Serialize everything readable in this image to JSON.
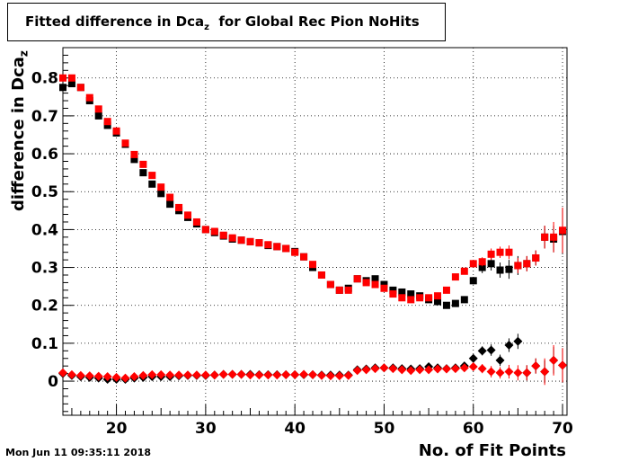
{
  "chart_data": {
    "type": "scatter",
    "title": "Fitted difference in Dca",
    "title_subscript": "z",
    "title_suffix": "for Global Rec Pion NoHits",
    "xlabel": "No. of Fit Points",
    "ylabel": "difference in Dca",
    "ylabel_subscript": "z",
    "xlim": [
      14,
      70.5
    ],
    "ylim": [
      -0.09,
      0.88
    ],
    "x_ticks": [
      20,
      30,
      40,
      50,
      60,
      70
    ],
    "y_ticks": [
      0,
      0.1,
      0.2,
      0.3,
      0.4,
      0.5,
      0.6,
      0.7,
      0.8
    ],
    "grid": true,
    "series": [
      {
        "color": "#000000",
        "marker": "square",
        "x": [
          14,
          15,
          16,
          17,
          18,
          19,
          20,
          21,
          22,
          23,
          24,
          25,
          26,
          27,
          28,
          29,
          30,
          31,
          32,
          33,
          34,
          35,
          36,
          37,
          38,
          39,
          40,
          41,
          42,
          43,
          44,
          45,
          46,
          47,
          48,
          49,
          50,
          51,
          52,
          53,
          54,
          55,
          56,
          57,
          58,
          59,
          60,
          61,
          62,
          63,
          64,
          65,
          66,
          67,
          68,
          69,
          70
        ],
        "y": [
          0.775,
          0.785,
          0.775,
          0.74,
          0.7,
          0.675,
          0.655,
          0.625,
          0.585,
          0.55,
          0.52,
          0.495,
          0.467,
          0.45,
          0.432,
          0.415,
          0.4,
          0.392,
          0.383,
          0.375,
          0.372,
          0.368,
          0.365,
          0.358,
          0.355,
          0.35,
          0.342,
          0.328,
          0.3,
          0.28,
          0.255,
          0.24,
          0.245,
          0.27,
          0.265,
          0.27,
          0.255,
          0.24,
          0.235,
          0.23,
          0.225,
          0.215,
          0.21,
          0.2,
          0.205,
          0.215,
          0.265,
          0.3,
          0.31,
          0.293,
          0.295,
          0.305,
          0.31,
          0.325,
          0.38,
          0.375,
          0.395
        ],
        "err": [
          0.008,
          0.008,
          0.007,
          0.007,
          0.007,
          0.006,
          0.006,
          0.006,
          0.006,
          0.006,
          0.006,
          0.006,
          0.006,
          0.006,
          0.006,
          0.006,
          0.006,
          0.006,
          0.006,
          0.006,
          0.006,
          0.006,
          0.006,
          0.006,
          0.006,
          0.006,
          0.006,
          0.006,
          0.006,
          0.006,
          0.006,
          0.006,
          0.006,
          0.006,
          0.006,
          0.006,
          0.006,
          0.006,
          0.006,
          0.006,
          0.006,
          0.006,
          0.006,
          0.006,
          0.006,
          0.008,
          0.01,
          0.015,
          0.018,
          0.02,
          0.025,
          0.025,
          0.02,
          0.02,
          0.03,
          0.035,
          0.06
        ]
      },
      {
        "color": "#ff0000",
        "marker": "square",
        "x": [
          14,
          15,
          16,
          17,
          18,
          19,
          20,
          21,
          22,
          23,
          24,
          25,
          26,
          27,
          28,
          29,
          30,
          31,
          32,
          33,
          34,
          35,
          36,
          37,
          38,
          39,
          40,
          41,
          42,
          43,
          44,
          45,
          46,
          47,
          48,
          49,
          50,
          51,
          52,
          53,
          54,
          55,
          56,
          57,
          58,
          59,
          60,
          61,
          62,
          63,
          64,
          65,
          66,
          67,
          68,
          69,
          70
        ],
        "y": [
          0.8,
          0.8,
          0.775,
          0.748,
          0.718,
          0.685,
          0.66,
          0.628,
          0.598,
          0.572,
          0.543,
          0.512,
          0.485,
          0.458,
          0.438,
          0.42,
          0.4,
          0.395,
          0.385,
          0.378,
          0.372,
          0.368,
          0.365,
          0.36,
          0.355,
          0.35,
          0.34,
          0.328,
          0.308,
          0.28,
          0.255,
          0.24,
          0.24,
          0.27,
          0.26,
          0.255,
          0.245,
          0.23,
          0.22,
          0.215,
          0.22,
          0.22,
          0.225,
          0.24,
          0.275,
          0.29,
          0.31,
          0.315,
          0.335,
          0.34,
          0.34,
          0.305,
          0.31,
          0.325,
          0.38,
          0.38,
          0.398
        ],
        "err": [
          0.008,
          0.008,
          0.007,
          0.007,
          0.007,
          0.006,
          0.006,
          0.006,
          0.006,
          0.006,
          0.006,
          0.006,
          0.006,
          0.006,
          0.006,
          0.006,
          0.006,
          0.006,
          0.006,
          0.006,
          0.006,
          0.006,
          0.006,
          0.006,
          0.006,
          0.006,
          0.006,
          0.006,
          0.006,
          0.006,
          0.006,
          0.006,
          0.006,
          0.006,
          0.006,
          0.006,
          0.006,
          0.006,
          0.006,
          0.006,
          0.006,
          0.006,
          0.006,
          0.006,
          0.006,
          0.008,
          0.01,
          0.012,
          0.015,
          0.015,
          0.018,
          0.02,
          0.02,
          0.02,
          0.03,
          0.04,
          0.06
        ]
      },
      {
        "color": "#000000",
        "marker": "diamond",
        "x": [
          14,
          15,
          16,
          17,
          18,
          19,
          20,
          21,
          22,
          23,
          24,
          25,
          26,
          27,
          28,
          29,
          30,
          31,
          32,
          33,
          34,
          35,
          36,
          37,
          38,
          39,
          40,
          41,
          42,
          43,
          44,
          45,
          46,
          47,
          48,
          49,
          50,
          51,
          52,
          53,
          54,
          55,
          56,
          57,
          58,
          59,
          60,
          61,
          62,
          63,
          64,
          65,
          66,
          67,
          68,
          69,
          70
        ],
        "y": [
          0.02,
          0.015,
          0.012,
          0.01,
          0.008,
          0.005,
          0.005,
          0.005,
          0.008,
          0.01,
          0.012,
          0.012,
          0.012,
          0.014,
          0.015,
          0.015,
          0.015,
          0.016,
          0.018,
          0.018,
          0.018,
          0.018,
          0.017,
          0.017,
          0.017,
          0.017,
          0.017,
          0.017,
          0.017,
          0.016,
          0.016,
          0.016,
          0.016,
          0.03,
          0.032,
          0.035,
          0.035,
          0.035,
          0.033,
          0.032,
          0.033,
          0.038,
          0.035,
          0.033,
          0.035,
          0.04,
          0.06,
          0.08,
          0.082,
          0.055,
          0.095,
          0.105,
          0.022,
          0.04,
          0.025,
          0.055,
          0.042
        ],
        "err": [
          0.004,
          0.004,
          0.004,
          0.004,
          0.004,
          0.004,
          0.004,
          0.004,
          0.004,
          0.004,
          0.004,
          0.004,
          0.004,
          0.004,
          0.004,
          0.004,
          0.004,
          0.004,
          0.004,
          0.004,
          0.004,
          0.004,
          0.004,
          0.004,
          0.004,
          0.004,
          0.004,
          0.004,
          0.004,
          0.004,
          0.004,
          0.004,
          0.004,
          0.005,
          0.005,
          0.005,
          0.005,
          0.005,
          0.005,
          0.005,
          0.005,
          0.005,
          0.005,
          0.005,
          0.006,
          0.008,
          0.01,
          0.012,
          0.015,
          0.015,
          0.018,
          0.02,
          0.02,
          0.02,
          0.03,
          0.035,
          0.045
        ]
      },
      {
        "color": "#ff0000",
        "marker": "diamond",
        "x": [
          14,
          15,
          16,
          17,
          18,
          19,
          20,
          21,
          22,
          23,
          24,
          25,
          26,
          27,
          28,
          29,
          30,
          31,
          32,
          33,
          34,
          35,
          36,
          37,
          38,
          39,
          40,
          41,
          42,
          43,
          44,
          45,
          46,
          47,
          48,
          49,
          50,
          51,
          52,
          53,
          54,
          55,
          56,
          57,
          58,
          59,
          60,
          61,
          62,
          63,
          64,
          65,
          66,
          67,
          68,
          69,
          70
        ],
        "y": [
          0.022,
          0.017,
          0.015,
          0.014,
          0.013,
          0.012,
          0.01,
          0.008,
          0.012,
          0.015,
          0.017,
          0.017,
          0.016,
          0.016,
          0.016,
          0.016,
          0.016,
          0.016,
          0.018,
          0.018,
          0.018,
          0.016,
          0.016,
          0.016,
          0.016,
          0.017,
          0.017,
          0.018,
          0.017,
          0.015,
          0.014,
          0.014,
          0.015,
          0.028,
          0.03,
          0.033,
          0.035,
          0.033,
          0.03,
          0.028,
          0.03,
          0.03,
          0.032,
          0.032,
          0.033,
          0.035,
          0.038,
          0.033,
          0.025,
          0.022,
          0.025,
          0.022,
          0.022,
          0.04,
          0.025,
          0.055,
          0.042
        ],
        "err": [
          0.004,
          0.004,
          0.004,
          0.004,
          0.004,
          0.004,
          0.004,
          0.004,
          0.004,
          0.004,
          0.004,
          0.004,
          0.004,
          0.004,
          0.004,
          0.004,
          0.004,
          0.004,
          0.004,
          0.004,
          0.004,
          0.004,
          0.004,
          0.004,
          0.004,
          0.004,
          0.004,
          0.004,
          0.004,
          0.004,
          0.004,
          0.004,
          0.004,
          0.005,
          0.005,
          0.005,
          0.005,
          0.005,
          0.005,
          0.005,
          0.005,
          0.005,
          0.005,
          0.005,
          0.006,
          0.008,
          0.01,
          0.012,
          0.015,
          0.015,
          0.018,
          0.02,
          0.02,
          0.02,
          0.035,
          0.04,
          0.045
        ]
      }
    ]
  },
  "timestamp": "Mon Jun 11 09:35:11 2018"
}
